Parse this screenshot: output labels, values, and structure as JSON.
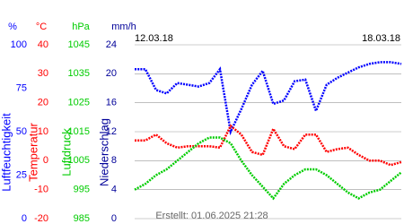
{
  "chart_data": {
    "type": "line",
    "date_labels": [
      "12.03.18",
      "18.03.18"
    ],
    "footer": "Erstellt: 01.06.2025 21:28",
    "axes": [
      {
        "unit": "%",
        "label": "Luftfeuchtigkeit",
        "color": "#0000ff",
        "ylim": [
          0,
          100
        ],
        "yticks": [
          0,
          25,
          50,
          75,
          100
        ]
      },
      {
        "unit": "°C",
        "label": "Temperatur",
        "color": "#ff0000",
        "ylim": [
          -20,
          40
        ],
        "yticks": [
          -20,
          -10,
          0,
          10,
          20,
          30,
          40
        ]
      },
      {
        "unit": "hPa",
        "label": "Luftdruck",
        "color": "#00cc00",
        "ylim": [
          985,
          1045
        ],
        "yticks": [
          985,
          995,
          1005,
          1015,
          1025,
          1035,
          1045
        ]
      },
      {
        "unit": "mm/h",
        "label": "Niederschlag",
        "color": "#000099",
        "ylim": [
          0,
          24
        ],
        "yticks": [
          0,
          4,
          8,
          12,
          16,
          20,
          24
        ]
      }
    ],
    "grid": true,
    "series": [
      {
        "name": "Luftfeuchtigkeit",
        "axis": 0,
        "color": "#0000ff",
        "values": [
          86,
          86,
          74,
          72,
          78,
          77,
          76,
          78,
          86,
          50,
          63,
          77,
          85,
          66,
          68,
          79,
          80,
          62,
          77,
          81,
          84,
          87,
          89,
          90,
          90,
          89
        ]
      },
      {
        "name": "Temperatur",
        "axis": 1,
        "color": "#ff0000",
        "values": [
          7,
          7,
          9,
          6,
          4.5,
          5,
          5,
          5,
          4.5,
          12,
          9,
          3,
          2,
          11,
          5,
          4,
          9,
          9,
          3,
          4,
          4.5,
          2,
          0,
          0,
          -1.5,
          -0.5
        ]
      },
      {
        "name": "Luftdruck",
        "axis": 2,
        "color": "#00cc00",
        "values": [
          995,
          997,
          1000,
          1002,
          1005,
          1008,
          1011,
          1013,
          1013,
          1011,
          1005,
          1000,
          996,
          992,
          997,
          1000,
          1002,
          1002,
          1000,
          997,
          994,
          992,
          994,
          995,
          998,
          1001
        ]
      }
    ]
  }
}
